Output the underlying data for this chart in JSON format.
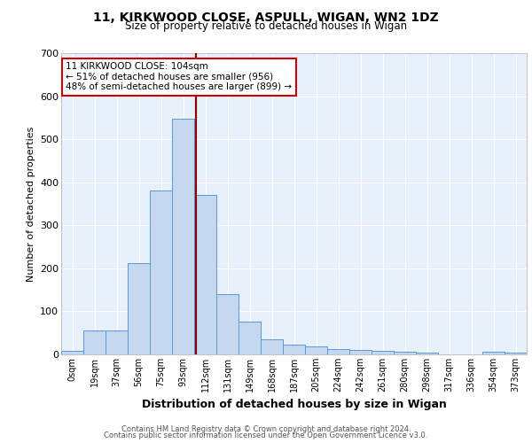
{
  "title1": "11, KIRKWOOD CLOSE, ASPULL, WIGAN, WN2 1DZ",
  "title2": "Size of property relative to detached houses in Wigan",
  "xlabel": "Distribution of detached houses by size in Wigan",
  "ylabel": "Number of detached properties",
  "bin_labels": [
    "0sqm",
    "19sqm",
    "37sqm",
    "56sqm",
    "75sqm",
    "93sqm",
    "112sqm",
    "131sqm",
    "149sqm",
    "168sqm",
    "187sqm",
    "205sqm",
    "224sqm",
    "242sqm",
    "261sqm",
    "280sqm",
    "298sqm",
    "317sqm",
    "336sqm",
    "354sqm",
    "373sqm"
  ],
  "bar_heights": [
    8,
    55,
    55,
    212,
    380,
    548,
    370,
    140,
    77,
    35,
    22,
    18,
    12,
    11,
    8,
    6,
    4,
    1,
    0,
    6,
    5
  ],
  "bar_color": "#c5d8f0",
  "bar_edge_color": "#5b9bd5",
  "bg_color": "#e8f0fb",
  "grid_color": "#ffffff",
  "vline_color": "#8b0000",
  "annotation_text": "11 KIRKWOOD CLOSE: 104sqm\n← 51% of detached houses are smaller (956)\n48% of semi-detached houses are larger (899) →",
  "annotation_box_color": "#ffffff",
  "annotation_box_edge": "#cc0000",
  "ylim": [
    0,
    700
  ],
  "yticks": [
    0,
    100,
    200,
    300,
    400,
    500,
    600,
    700
  ],
  "footer1": "Contains HM Land Registry data © Crown copyright and database right 2024.",
  "footer2": "Contains public sector information licensed under the Open Government Licence v3.0."
}
